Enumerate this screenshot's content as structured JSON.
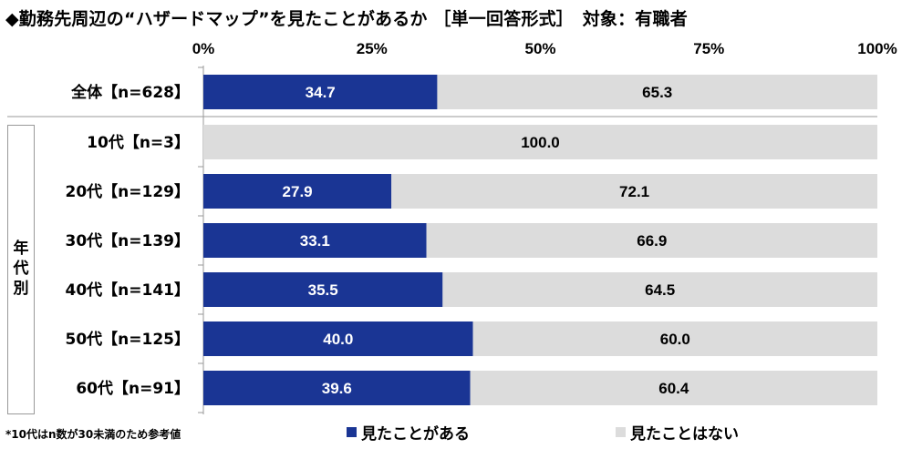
{
  "title": "◆勤務先周辺の“ハザードマップ”を見たことがあるか ［単一回答形式］　対象：有職者",
  "colors": {
    "seen": "#1a3594",
    "not_seen": "#dcdcdc",
    "axis": "#999999"
  },
  "chart_data": {
    "type": "bar",
    "orientation": "horizontal-stacked-100",
    "axis_ticks": [
      "0%",
      "25%",
      "50%",
      "75%",
      "100%"
    ],
    "xlim": [
      0,
      100
    ],
    "categories": [
      "全体【n=628】",
      "10代【n=3】",
      "20代【n=129】",
      "30代【n=139】",
      "40代【n=141】",
      "50代【n=125】",
      "60代【n=91】"
    ],
    "series": [
      {
        "name": "見たことがある",
        "values": [
          34.7,
          0,
          27.9,
          33.1,
          35.5,
          40.0,
          39.6
        ],
        "labels": [
          "34.7",
          "",
          "27.9",
          "33.1",
          "35.5",
          "40.0",
          "39.6"
        ]
      },
      {
        "name": "見たことはない",
        "values": [
          65.3,
          100.0,
          72.1,
          66.9,
          64.5,
          60.0,
          60.4
        ],
        "labels": [
          "65.3",
          "100.0",
          "72.1",
          "66.9",
          "64.5",
          "60.0",
          "60.4"
        ]
      }
    ],
    "group_label": "年代別"
  },
  "footnote": "*10代はn数が30未満のため参考値"
}
